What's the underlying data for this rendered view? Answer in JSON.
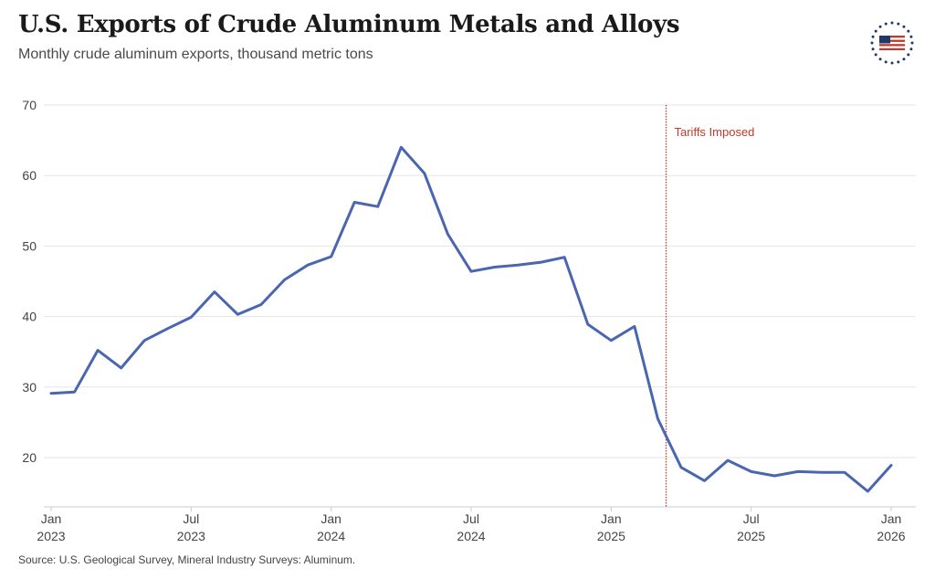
{
  "title": "U.S. Exports of Crude Aluminum Metals and Alloys",
  "subtitle": "Monthly crude aluminum exports, thousand metric tons",
  "source": "Source: U.S. Geological Survey, Mineral Industry Surveys: Aluminum.",
  "logo_icon": "us-flag-stars-badge-icon",
  "colors": {
    "line": "#4a66b0",
    "annotation": "#c0392b",
    "grid": "#e6e6e6",
    "axis": "#cccccc"
  },
  "chart_data": {
    "type": "line",
    "title": "U.S. Exports of Crude Aluminum Metals and Alloys",
    "subtitle": "Monthly crude aluminum exports, thousand metric tons",
    "ylim": [
      13,
      70
    ],
    "y_ticks": [
      20,
      30,
      40,
      50,
      60,
      70
    ],
    "grid": true,
    "x_ticks": [
      {
        "month": "2023-01",
        "line1": "Jan",
        "line2": "2023"
      },
      {
        "month": "2023-07",
        "line1": "Jul",
        "line2": "2023"
      },
      {
        "month": "2024-01",
        "line1": "Jan",
        "line2": "2024"
      },
      {
        "month": "2024-07",
        "line1": "Jul",
        "line2": "2024"
      },
      {
        "month": "2025-01",
        "line1": "Jan",
        "line2": "2025"
      },
      {
        "month": "2025-07",
        "line1": "Jul",
        "line2": "2025"
      },
      {
        "month": "2026-01",
        "line1": "Jan",
        "line2": "2026"
      }
    ],
    "annotation": {
      "label": "Tariffs Imposed",
      "date": "2025-03-12",
      "style": "dotted vertical line"
    },
    "series": [
      {
        "x": [
          "2023-01",
          "2023-02",
          "2023-03",
          "2023-04",
          "2023-05",
          "2023-06",
          "2023-07",
          "2023-08",
          "2023-09",
          "2023-10",
          "2023-11",
          "2023-12",
          "2024-01",
          "2024-02",
          "2024-03",
          "2024-04",
          "2024-05",
          "2024-06",
          "2024-07",
          "2024-08",
          "2024-09",
          "2024-10",
          "2024-11",
          "2024-12",
          "2025-01",
          "2025-02",
          "2025-03",
          "2025-04",
          "2025-05",
          "2025-06",
          "2025-07",
          "2025-08",
          "2025-09",
          "2025-10",
          "2025-11",
          "2025-12",
          "2026-01"
        ],
        "values": [
          29.1,
          29.3,
          35.2,
          32.7,
          36.6,
          38.3,
          39.9,
          43.5,
          40.3,
          41.7,
          45.2,
          47.3,
          48.5,
          56.2,
          55.6,
          64.0,
          60.3,
          51.7,
          46.4,
          47.0,
          47.3,
          47.7,
          48.4,
          38.9,
          36.6,
          38.6,
          25.5,
          18.6,
          16.7,
          19.6,
          18.0,
          17.4,
          18.0,
          17.9,
          17.9,
          15.2,
          18.9
        ]
      }
    ]
  }
}
